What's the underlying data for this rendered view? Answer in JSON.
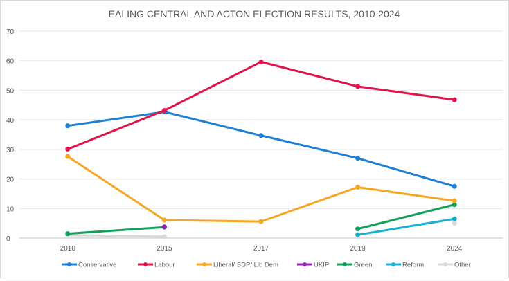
{
  "chart_data": {
    "type": "line",
    "title": "EALING CENTRAL AND ACTON ELECTION RESULTS, 2010-2024",
    "xlabel": "",
    "ylabel": "",
    "categories": [
      "2010",
      "2015",
      "2017",
      "2019",
      "2024"
    ],
    "ylim": [
      0,
      70
    ],
    "yticks": [
      "0",
      "10",
      "20",
      "30",
      "40",
      "50",
      "60",
      "70"
    ],
    "grid": true,
    "legend_position": "bottom",
    "series": [
      {
        "name": "Conservative",
        "color": "#1f7fd4",
        "values": [
          38.0,
          42.7,
          34.7,
          27.0,
          17.5
        ]
      },
      {
        "name": "Labour",
        "color": "#e0134a",
        "values": [
          30.1,
          43.2,
          59.6,
          51.3,
          46.8
        ]
      },
      {
        "name": "Liberal/ SDP/ Lib Dem",
        "color": "#f5a623",
        "values": [
          27.6,
          6.1,
          5.6,
          17.2,
          12.6
        ]
      },
      {
        "name": "UKIP",
        "color": "#8e24aa",
        "values": [
          null,
          3.8,
          null,
          null,
          null
        ]
      },
      {
        "name": "Green",
        "color": "#12a05c",
        "values": [
          1.5,
          3.7,
          null,
          3.1,
          11.3
        ]
      },
      {
        "name": "Reform",
        "color": "#1ab0cf",
        "values": [
          null,
          null,
          null,
          1.1,
          6.5
        ]
      },
      {
        "name": "Other",
        "color": "#d9d9d9",
        "values": [
          1.0,
          0.5,
          null,
          null,
          5.0
        ]
      }
    ]
  }
}
